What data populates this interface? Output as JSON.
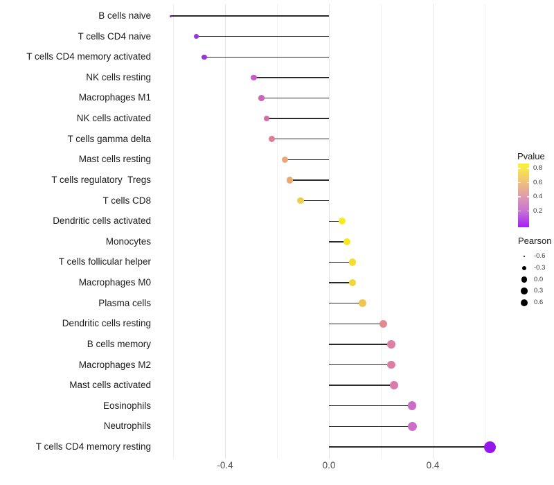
{
  "chart_data": {
    "type": "scatter",
    "variant": "lollipop",
    "title": "",
    "xlabel": "",
    "ylabel": "",
    "xlim": [
      -0.65,
      0.72
    ],
    "x_major_ticks": [
      -0.4,
      0.0,
      0.4
    ],
    "x_minor_ticks": [
      -0.6,
      -0.2,
      0.2,
      0.6
    ],
    "x_tick_labels": [
      "-0.4",
      "0.0",
      "0.4"
    ],
    "encoding": {
      "x": "Pearson correlation",
      "color": "Pvalue",
      "size": "Pearson"
    },
    "grid": true,
    "legend_position": "right",
    "points": [
      {
        "label": "B cells naive",
        "pearson": -0.61,
        "pvalue_est": 0.03,
        "color": "#7e1cd8",
        "r": 1.5
      },
      {
        "label": "T cells CD4 naive",
        "pearson": -0.51,
        "pvalue_est": 0.09,
        "color": "#9a34e4",
        "r": 3.3
      },
      {
        "label": "T cells CD4 memory activated",
        "pearson": -0.48,
        "pvalue_est": 0.1,
        "color": "#9c31df",
        "r": 3.6
      },
      {
        "label": "NK cells resting",
        "pearson": -0.29,
        "pvalue_est": 0.22,
        "color": "#c75cc8",
        "r": 4.3
      },
      {
        "label": "Macrophages M1",
        "pearson": -0.26,
        "pvalue_est": 0.28,
        "color": "#ce64b8",
        "r": 4.4
      },
      {
        "label": "NK cells activated",
        "pearson": -0.24,
        "pvalue_est": 0.32,
        "color": "#d46caa",
        "r": 4.4
      },
      {
        "label": "T cells gamma delta",
        "pearson": -0.22,
        "pvalue_est": 0.41,
        "color": "#db7e98",
        "r": 4.5
      },
      {
        "label": "Mast cells resting",
        "pearson": -0.17,
        "pvalue_est": 0.55,
        "color": "#eaa779",
        "r": 4.6
      },
      {
        "label": "T cells regulatory  Tregs",
        "pearson": -0.15,
        "pvalue_est": 0.57,
        "color": "#eaa96d",
        "r": 4.7
      },
      {
        "label": "T cells CD8",
        "pearson": -0.11,
        "pvalue_est": 0.68,
        "color": "#f1cd48",
        "r": 4.8
      },
      {
        "label": "Dendritic cells activated",
        "pearson": 0.05,
        "pvalue_est": 0.82,
        "color": "#f7ec1c",
        "r": 5.0
      },
      {
        "label": "Monocytes",
        "pearson": 0.07,
        "pvalue_est": 0.79,
        "color": "#f7e625",
        "r": 5.1
      },
      {
        "label": "T cells follicular helper",
        "pearson": 0.09,
        "pvalue_est": 0.74,
        "color": "#f4dc31",
        "r": 5.1
      },
      {
        "label": "Macrophages M0",
        "pearson": 0.09,
        "pvalue_est": 0.71,
        "color": "#f2d53b",
        "r": 5.2
      },
      {
        "label": "Plasma cells",
        "pearson": 0.13,
        "pvalue_est": 0.63,
        "color": "#efc453",
        "r": 5.3
      },
      {
        "label": "Dendritic cells resting",
        "pearson": 0.21,
        "pvalue_est": 0.45,
        "color": "#e18b90",
        "r": 5.5
      },
      {
        "label": "B cells memory",
        "pearson": 0.24,
        "pvalue_est": 0.38,
        "color": "#dd80a4",
        "r": 5.7
      },
      {
        "label": "Macrophages M2",
        "pearson": 0.24,
        "pvalue_est": 0.37,
        "color": "#dc7da8",
        "r": 5.7
      },
      {
        "label": "Mast cells activated",
        "pearson": 0.25,
        "pvalue_est": 0.36,
        "color": "#db7bab",
        "r": 5.8
      },
      {
        "label": "Eosinophils",
        "pearson": 0.32,
        "pvalue_est": 0.21,
        "color": "#ce6bc7",
        "r": 6.4
      },
      {
        "label": "Neutrophils",
        "pearson": 0.32,
        "pvalue_est": 0.21,
        "color": "#cd6dc9",
        "r": 6.5
      },
      {
        "label": "T cells CD4 memory resting",
        "pearson": 0.62,
        "pvalue_est": 0.05,
        "color": "#9517e9",
        "r": 8.5
      }
    ]
  },
  "legend": {
    "pvalue": {
      "title": "Pvalue",
      "ticks": [
        "0.8",
        "0.6",
        "0.4",
        "0.2"
      ],
      "gradient_top_to_bottom": [
        "#fcf22e",
        "#f8e74a",
        "#efbf7d",
        "#de9bae",
        "#c672d6",
        "#a41ff3"
      ]
    },
    "pearson": {
      "title": "Pearson",
      "entries": [
        {
          "label": "-0.6",
          "r": 1.4
        },
        {
          "label": "-0.3",
          "r": 3.2
        },
        {
          "label": "0.0",
          "r": 4.1
        },
        {
          "label": "0.3",
          "r": 4.8
        },
        {
          "label": "0.6",
          "r": 5.4
        }
      ]
    }
  }
}
